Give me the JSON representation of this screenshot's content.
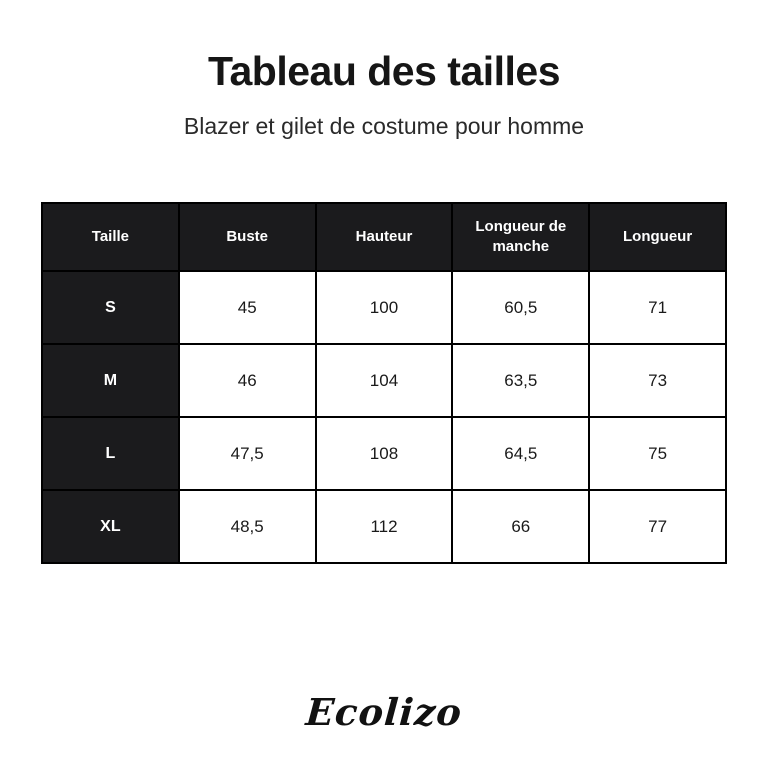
{
  "page": {
    "title": "Tableau des tailles",
    "subtitle": "Blazer et gilet de costume pour homme"
  },
  "size_table": {
    "columns": [
      "Taille",
      "Buste",
      "Hauteur",
      "Longueur de manche",
      "Longueur"
    ],
    "rows": [
      {
        "size": "S",
        "values": [
          "45",
          "100",
          "60,5",
          "71"
        ]
      },
      {
        "size": "M",
        "values": [
          "46",
          "104",
          "63,5",
          "73"
        ]
      },
      {
        "size": "L",
        "values": [
          "47,5",
          "108",
          "64,5",
          "75"
        ]
      },
      {
        "size": "XL",
        "values": [
          "48,5",
          "112",
          "66",
          "77"
        ]
      }
    ]
  },
  "brand": {
    "logo_text": "Ecolizo"
  },
  "colors": {
    "header_bg": "#1b1b1d",
    "border": "#000000",
    "cell_bg": "#ffffff",
    "title_text": "#161616",
    "header_text": "#ffffff"
  },
  "chart_data": {
    "type": "table",
    "title": "Tableau des tailles",
    "subtitle": "Blazer et gilet de costume pour homme",
    "columns": [
      "Taille",
      "Buste",
      "Hauteur",
      "Longueur de manche",
      "Longueur"
    ],
    "rows": [
      [
        "S",
        "45",
        "100",
        "60,5",
        "71"
      ],
      [
        "M",
        "46",
        "104",
        "63,5",
        "73"
      ],
      [
        "L",
        "47,5",
        "108",
        "64,5",
        "75"
      ],
      [
        "XL",
        "48,5",
        "112",
        "66",
        "77"
      ]
    ]
  }
}
